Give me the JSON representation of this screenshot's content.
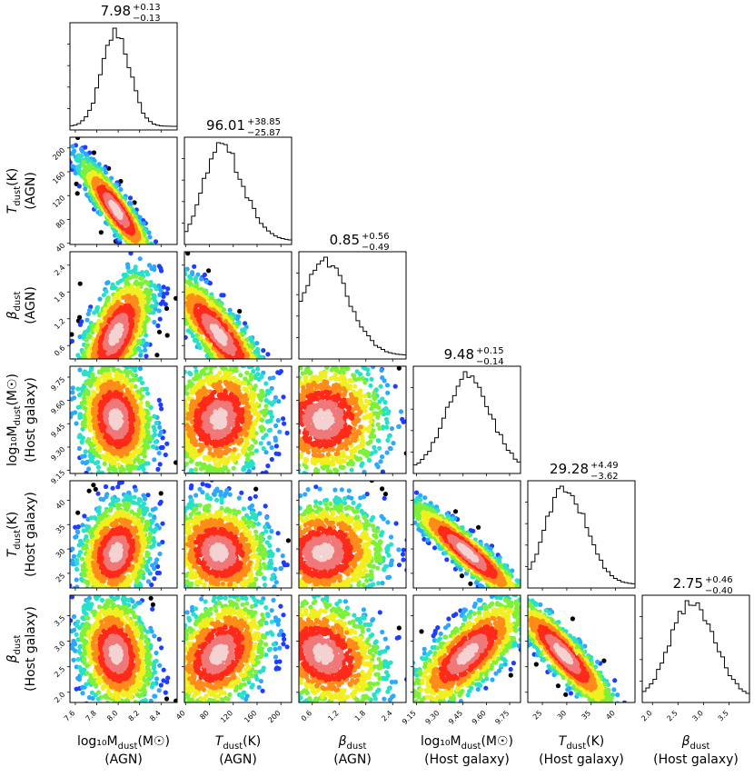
{
  "chart_data": {
    "type": "scatter",
    "params": [
      {
        "id": "mdust_agn",
        "symbol": "log₁₀M",
        "sub": "dust",
        "suffix": "(M☉)",
        "line2": "(AGN)",
        "range": [
          7.55,
          8.55
        ],
        "ticks": [
          7.6,
          7.8,
          8.0,
          8.2,
          8.4
        ],
        "tick_labels": [
          "7.6",
          "7.8",
          "8.0",
          "8.2",
          "8.4"
        ],
        "median": 7.98,
        "err_hi": 0.13,
        "err_lo": 0.13,
        "title": {
          "value": "7.98",
          "plus": "+0.13",
          "minus": "−0.13"
        }
      },
      {
        "id": "tdust_agn",
        "symbol": "T",
        "sub": "dust",
        "suffix": "(K)",
        "line2": "(AGN)",
        "range": [
          38,
          218
        ],
        "ticks": [
          40,
          80,
          120,
          160,
          200
        ],
        "tick_labels": [
          "40",
          "80",
          "120",
          "160",
          "200"
        ],
        "median": 96.01,
        "err_hi": 38.85,
        "err_lo": 25.87,
        "title": {
          "value": "96.01",
          "plus": "+38.85",
          "minus": "−25.87"
        }
      },
      {
        "id": "beta_agn",
        "symbol": "β",
        "sub": "dust",
        "suffix": "",
        "line2": "(AGN)",
        "range": [
          0.3,
          2.7
        ],
        "ticks": [
          0.6,
          1.2,
          1.8,
          2.4
        ],
        "tick_labels": [
          "0.6",
          "1.2",
          "1.8",
          "2.4"
        ],
        "median": 0.85,
        "err_hi": 0.56,
        "err_lo": 0.49,
        "title": {
          "value": "0.85",
          "plus": "+0.56",
          "minus": "−0.49"
        }
      },
      {
        "id": "mdust_host",
        "symbol": "log₁₀M",
        "sub": "dust",
        "suffix": "(M☉)",
        "line2": "(Host galaxy)",
        "range": [
          9.13,
          9.82
        ],
        "ticks": [
          9.15,
          9.3,
          9.45,
          9.6,
          9.75
        ],
        "tick_labels": [
          "9.15",
          "9.30",
          "9.45",
          "9.60",
          "9.75"
        ],
        "median": 9.48,
        "err_hi": 0.15,
        "err_lo": 0.14,
        "title": {
          "value": "9.48",
          "plus": "+0.15",
          "minus": "−0.14"
        }
      },
      {
        "id": "tdust_host",
        "symbol": "T",
        "sub": "dust",
        "suffix": "(K)",
        "line2": "(Host galaxy)",
        "range": [
          22,
          44
        ],
        "ticks": [
          25,
          30,
          35,
          40
        ],
        "tick_labels": [
          "25",
          "30",
          "35",
          "40"
        ],
        "median": 29.28,
        "err_hi": 4.49,
        "err_lo": 3.62,
        "title": {
          "value": "29.28",
          "plus": "+4.49",
          "minus": "−3.62"
        }
      },
      {
        "id": "beta_host",
        "symbol": "β",
        "sub": "dust",
        "suffix": "",
        "line2": "(Host galaxy)",
        "range": [
          1.8,
          3.9
        ],
        "ticks": [
          2.0,
          2.5,
          3.0,
          3.5
        ],
        "tick_labels": [
          "2.0",
          "2.5",
          "3.0",
          "3.5"
        ],
        "median": 2.75,
        "err_hi": 0.46,
        "err_lo": 0.4,
        "title": {
          "value": "2.75",
          "plus": "+0.46",
          "minus": "−0.40"
        }
      }
    ],
    "correlations": [
      [
        1.0,
        -0.9,
        0.6,
        -0.15,
        0.25,
        -0.2
      ],
      [
        -0.9,
        1.0,
        -0.85,
        0.1,
        -0.15,
        0.35
      ],
      [
        0.6,
        -0.85,
        1.0,
        0.0,
        0.05,
        -0.3
      ],
      [
        -0.15,
        0.1,
        0.0,
        1.0,
        -0.93,
        0.75
      ],
      [
        0.25,
        -0.15,
        0.05,
        -0.93,
        1.0,
        -0.9
      ],
      [
        -0.2,
        0.35,
        -0.3,
        0.75,
        -0.9,
        1.0
      ]
    ],
    "colormap": [
      "#000000",
      "#1f3cff",
      "#2ca9ff",
      "#29e0c8",
      "#7df03a",
      "#f2ef20",
      "#ff8c1a",
      "#ff2a1a",
      "#f07878",
      "#f5d2d2"
    ],
    "grid": false,
    "legend": "none"
  }
}
